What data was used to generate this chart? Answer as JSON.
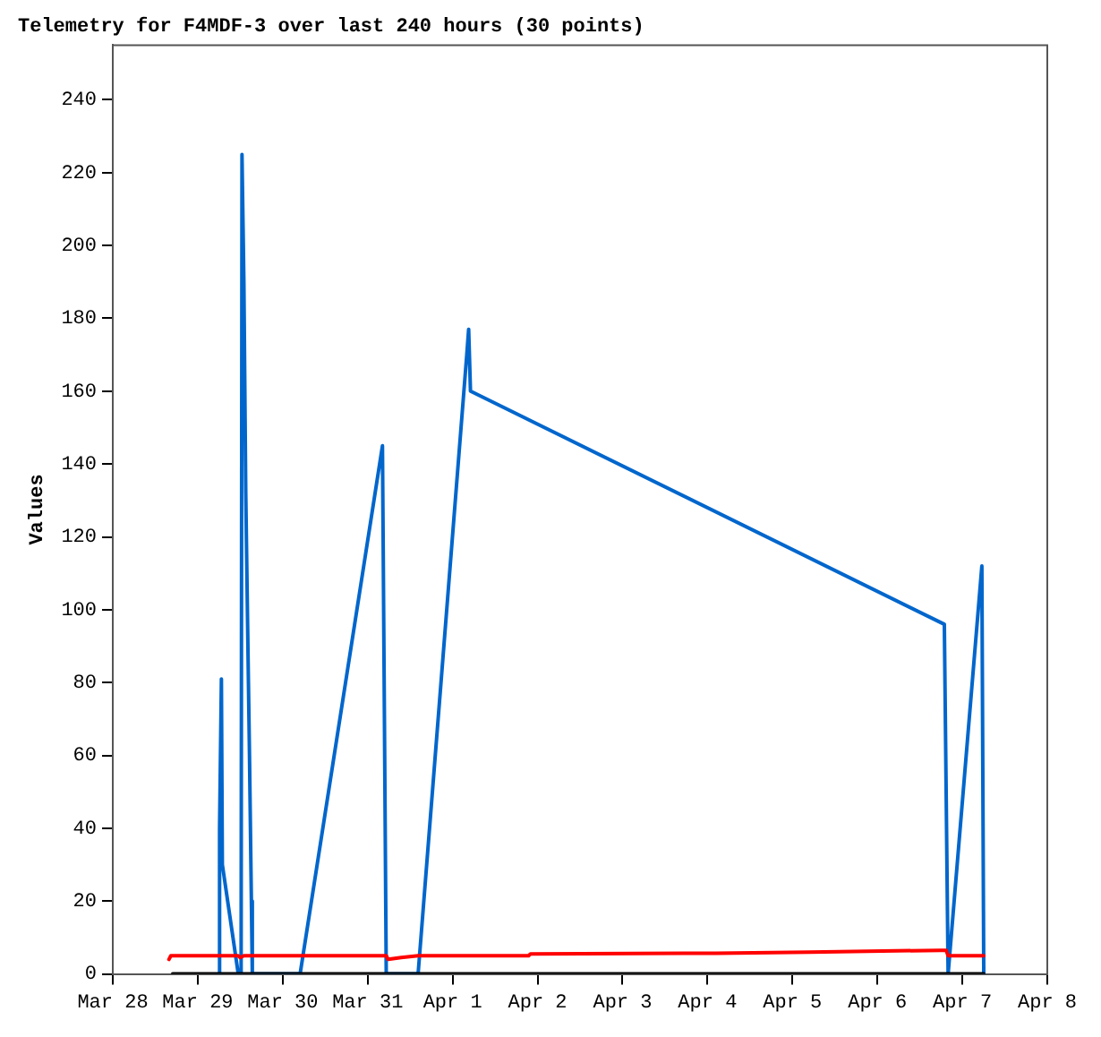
{
  "chart_data": {
    "type": "line",
    "title": "Telemetry for F4MDF-3 over last 240 hours (30 points)",
    "ylabel": "Values",
    "grid": false,
    "legend": false,
    "marker": "none",
    "line_style": "solid",
    "xlim": [
      "--03-28",
      "--04-08"
    ],
    "xticks": [
      {
        "value": "--03-28",
        "label": "Mar 28"
      },
      {
        "value": "--03-29",
        "label": "Mar 29"
      },
      {
        "value": "--03-30",
        "label": "Mar 30"
      },
      {
        "value": "--03-31",
        "label": "Mar 31"
      },
      {
        "value": "--04-01",
        "label": "Apr 1"
      },
      {
        "value": "--04-02",
        "label": "Apr 2"
      },
      {
        "value": "--04-03",
        "label": "Apr 3"
      },
      {
        "value": "--04-04",
        "label": "Apr 4"
      },
      {
        "value": "--04-05",
        "label": "Apr 5"
      },
      {
        "value": "--04-06",
        "label": "Apr 6"
      },
      {
        "value": "--04-07",
        "label": "Apr 7"
      },
      {
        "value": "--04-08",
        "label": "Apr 8"
      }
    ],
    "ylim": [
      0,
      255
    ],
    "yticks": [
      0,
      20,
      40,
      60,
      80,
      100,
      120,
      140,
      160,
      180,
      200,
      220,
      240
    ],
    "series": [
      {
        "color": "#000000",
        "x": [
          "--03-28T16:55",
          "--04-07T06:03"
        ],
        "values": [
          0,
          0
        ]
      },
      {
        "color": "#ff0000",
        "x": [
          "--03-28T15:52",
          "--03-28T16:24",
          "--03-29T11:27",
          "--03-29T11:59",
          "--03-29T13:02",
          "--03-31T05:15",
          "--03-31T05:47",
          "--03-31T09:29",
          "--03-31T14:15",
          "--04-01T21:28",
          "--04-01T22:00",
          "--04-04T02:22",
          "--04-05T04:50",
          "--04-06T17:52",
          "--04-06T19:27",
          "--04-06T19:59",
          "--04-07T06:03"
        ],
        "values": [
          4,
          5,
          5,
          4.5,
          5,
          5,
          4,
          4.5,
          5,
          5,
          5.5,
          5.7,
          6,
          6.5,
          6.5,
          5,
          5
        ]
      },
      {
        "color": "#0066cc",
        "x": [
          "--03-29T05:54",
          "--03-29T06:10",
          "--03-29T06:41",
          "--03-29T06:57",
          "--03-29T11:27",
          "--03-29T12:15",
          "--03-29T12:30",
          "--03-29T13:02",
          "--03-29T13:34",
          "--03-29T14:06",
          "--03-29T14:37",
          "--03-29T15:09",
          "--03-29T15:25",
          "--03-30T04:55",
          "--03-31T04:11",
          "--03-31T04:43",
          "--03-31T05:15",
          "--03-31T14:15",
          "--04-01T04:00",
          "--04-01T04:32",
          "--04-01T05:03",
          "--04-06T18:55",
          "--04-06T19:27",
          "--04-06T19:59",
          "--04-07T05:31",
          "--04-07T06:03"
        ],
        "values": [
          0,
          40,
          81,
          30,
          0,
          0,
          225,
          190,
          132,
          95,
          60,
          20,
          0,
          0,
          145,
          73,
          0,
          0,
          170,
          177,
          160,
          96,
          48,
          0,
          112,
          0
        ]
      }
    ]
  }
}
